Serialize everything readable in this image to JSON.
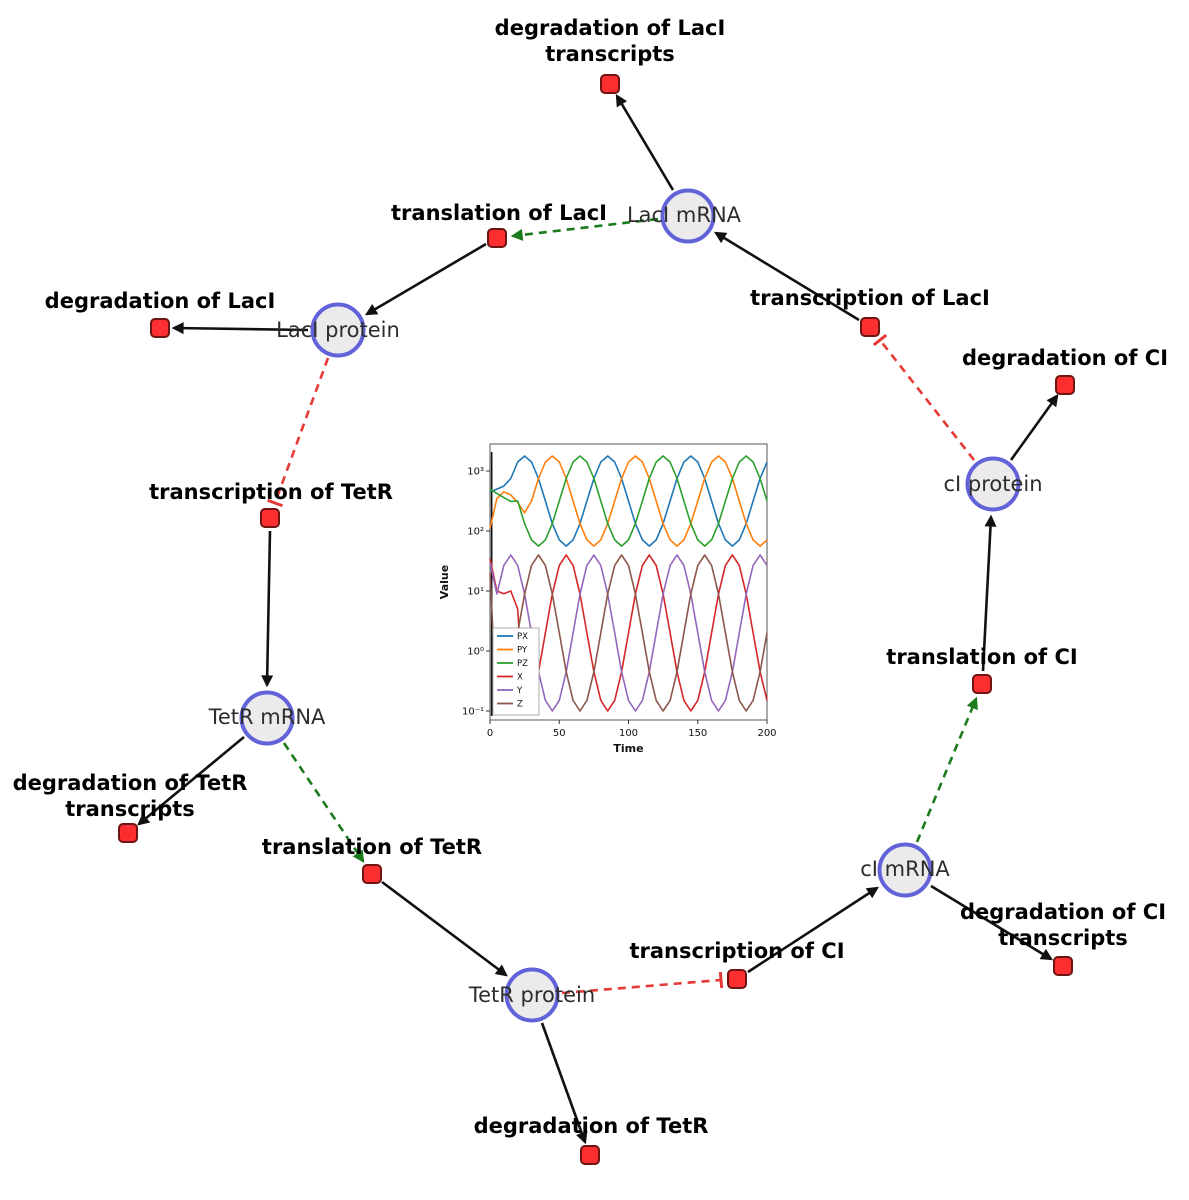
{
  "diagram": {
    "species": [
      {
        "id": "laci-mrna",
        "label": "LacI mRNA"
      },
      {
        "id": "laci-protein",
        "label": "LacI protein"
      },
      {
        "id": "tetr-mrna",
        "label": "TetR mRNA"
      },
      {
        "id": "tetr-protein",
        "label": "TetR protein"
      },
      {
        "id": "ci-mrna",
        "label": "cI mRNA"
      },
      {
        "id": "ci-protein",
        "label": "cI protein"
      }
    ],
    "reactions": [
      {
        "id": "translation-of-laci",
        "lines": [
          "translation of LacI"
        ]
      },
      {
        "id": "degradation-of-laci-transcripts",
        "lines": [
          "degradation of LacI",
          "transcripts"
        ]
      },
      {
        "id": "transcription-of-laci",
        "lines": [
          "transcription of LacI"
        ]
      },
      {
        "id": "degradation-of-laci",
        "lines": [
          "degradation of LacI"
        ]
      },
      {
        "id": "degradation-of-ci",
        "lines": [
          "degradation of CI"
        ]
      },
      {
        "id": "transcription-of-tetr",
        "lines": [
          "transcription of TetR"
        ]
      },
      {
        "id": "translation-of-ci",
        "lines": [
          "translation of CI"
        ]
      },
      {
        "id": "degradation-of-tetr-transcripts",
        "lines": [
          "degradation of TetR",
          "transcripts"
        ]
      },
      {
        "id": "translation-of-tetr",
        "lines": [
          "translation of TetR"
        ]
      },
      {
        "id": "degradation-of-ci-transcripts",
        "lines": [
          "degradation of CI",
          "transcripts"
        ]
      },
      {
        "id": "transcription-of-ci",
        "lines": [
          "transcription of CI"
        ]
      },
      {
        "id": "degradation-of-tetr",
        "lines": [
          "degradation of TetR"
        ]
      }
    ],
    "edges": [
      {
        "from": "LacI mRNA",
        "to": "degradation of LacI transcripts",
        "type": "consumption"
      },
      {
        "from": "translation of LacI",
        "to": "LacI protein",
        "type": "production"
      },
      {
        "from": "LacI mRNA",
        "to": "translation of LacI",
        "type": "activation"
      },
      {
        "from": "transcription of LacI",
        "to": "LacI mRNA",
        "type": "production"
      },
      {
        "from": "cI protein",
        "to": "transcription of LacI",
        "type": "inhibition"
      },
      {
        "from": "LacI protein",
        "to": "degradation of LacI",
        "type": "consumption"
      },
      {
        "from": "LacI protein",
        "to": "transcription of TetR",
        "type": "inhibition"
      },
      {
        "from": "transcription of TetR",
        "to": "TetR mRNA",
        "type": "production"
      },
      {
        "from": "TetR mRNA",
        "to": "degradation of TetR transcripts",
        "type": "consumption"
      },
      {
        "from": "TetR mRNA",
        "to": "translation of TetR",
        "type": "activation"
      },
      {
        "from": "translation of TetR",
        "to": "TetR protein",
        "type": "production"
      },
      {
        "from": "TetR protein",
        "to": "degradation of TetR",
        "type": "consumption"
      },
      {
        "from": "TetR protein",
        "to": "transcription of CI",
        "type": "inhibition"
      },
      {
        "from": "transcription of CI",
        "to": "cI mRNA",
        "type": "production"
      },
      {
        "from": "cI mRNA",
        "to": "degradation of CI transcripts",
        "type": "consumption"
      },
      {
        "from": "cI mRNA",
        "to": "translation of CI",
        "type": "activation"
      },
      {
        "from": "translation of CI",
        "to": "cI protein",
        "type": "production"
      },
      {
        "from": "cI protein",
        "to": "degradation of CI",
        "type": "consumption"
      }
    ],
    "colors": {
      "species_fill": "#ebebeb",
      "species_stroke": "#6262d9",
      "reaction_fill": "#fb2f2f",
      "reaction_stroke": "#6e1414",
      "edge": "#111111",
      "activation": "#1b7a1b",
      "inhibition": "#e53935"
    }
  },
  "chart_data": {
    "type": "line",
    "x_label": "Time",
    "y_label": "Value",
    "y_scale": "log",
    "x_range": [
      0,
      200
    ],
    "x_ticks": [
      0,
      50,
      100,
      150,
      200
    ],
    "y_ticks": [
      {
        "exp": -1,
        "label": "10⁻¹"
      },
      {
        "exp": 0,
        "label": "10⁰"
      },
      {
        "exp": 1,
        "label": "10¹"
      },
      {
        "exp": 2,
        "label": "10²"
      },
      {
        "exp": 3,
        "label": "10³"
      }
    ],
    "transient_line_t": 1.2,
    "legend_position": "left-bottom",
    "x": [
      0,
      5,
      10,
      15,
      20,
      25,
      30,
      35,
      40,
      45,
      50,
      55,
      60,
      65,
      70,
      75,
      80,
      85,
      90,
      95,
      100,
      105,
      110,
      115,
      120,
      125,
      130,
      135,
      140,
      145,
      150,
      155,
      160,
      165,
      170,
      175,
      180,
      185,
      190,
      195,
      200
    ],
    "series": [
      {
        "name": "PX",
        "color": "#1f77b4",
        "values": [
          450,
          500,
          560,
          750,
          1413,
          1778,
          1413,
          750,
          316,
          133,
          71,
          56,
          71,
          133,
          316,
          750,
          1413,
          1778,
          1413,
          750,
          316,
          133,
          71,
          56,
          71,
          133,
          316,
          750,
          1413,
          1778,
          1413,
          750,
          316,
          133,
          71,
          56,
          71,
          133,
          316,
          750,
          1413
        ]
      },
      {
        "name": "PY",
        "color": "#ff7f0e",
        "values": [
          110,
          350,
          450,
          400,
          300,
          200,
          316,
          750,
          1413,
          1778,
          1413,
          750,
          316,
          133,
          71,
          56,
          71,
          133,
          316,
          750,
          1413,
          1778,
          1413,
          750,
          316,
          133,
          71,
          56,
          71,
          133,
          316,
          750,
          1413,
          1778,
          1413,
          750,
          316,
          133,
          71,
          56,
          71
        ]
      },
      {
        "name": "PZ",
        "color": "#2ca02c",
        "values": [
          500,
          420,
          360,
          310,
          316,
          133,
          71,
          56,
          71,
          133,
          316,
          750,
          1413,
          1778,
          1413,
          750,
          316,
          133,
          71,
          56,
          71,
          133,
          316,
          750,
          1413,
          1778,
          1413,
          750,
          316,
          133,
          71,
          56,
          71,
          133,
          316,
          750,
          1413,
          1778,
          1413,
          750,
          316
        ]
      },
      {
        "name": "X",
        "color": "#d62728",
        "values": [
          35,
          10,
          9,
          10,
          5,
          0.1,
          0.15,
          0.45,
          2,
          8.9,
          26.7,
          39.8,
          26.7,
          8.9,
          2,
          0.45,
          0.15,
          0.1,
          0.15,
          0.45,
          2,
          8.9,
          26.7,
          39.8,
          26.7,
          8.9,
          2,
          0.45,
          0.15,
          0.1,
          0.15,
          0.45,
          2,
          8.9,
          26.7,
          39.8,
          26.7,
          8.9,
          2,
          0.45,
          0.15
        ]
      },
      {
        "name": "Y",
        "color": "#9467bd",
        "values": [
          30,
          8.9,
          26.7,
          39.8,
          26.7,
          8.9,
          2,
          0.45,
          0.15,
          0.1,
          0.15,
          0.45,
          2,
          8.9,
          26.7,
          39.8,
          26.7,
          8.9,
          2,
          0.45,
          0.15,
          0.1,
          0.15,
          0.45,
          2,
          8.9,
          26.7,
          39.8,
          26.7,
          8.9,
          2,
          0.45,
          0.15,
          0.1,
          0.15,
          0.45,
          2,
          8.9,
          26.7,
          39.8,
          26.7
        ]
      },
      {
        "name": "Z",
        "color": "#8c564b",
        "values": [
          20,
          0.1,
          0.15,
          0.45,
          2,
          8.9,
          26.7,
          39.8,
          26.7,
          8.9,
          2,
          0.45,
          0.15,
          0.1,
          0.15,
          0.45,
          2,
          8.9,
          26.7,
          39.8,
          26.7,
          8.9,
          2,
          0.45,
          0.15,
          0.1,
          0.15,
          0.45,
          2,
          8.9,
          26.7,
          39.8,
          26.7,
          8.9,
          2,
          0.45,
          0.15,
          0.1,
          0.15,
          0.45,
          2
        ]
      }
    ]
  }
}
